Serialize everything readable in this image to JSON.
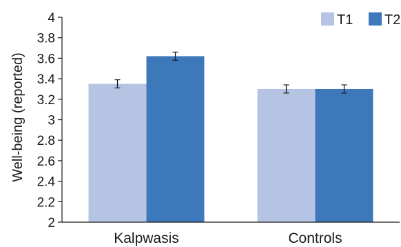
{
  "chart_data": {
    "type": "bar",
    "title": "",
    "xlabel": "",
    "ylabel": "Well-being (reported)",
    "ylim": [
      2,
      4
    ],
    "yticks": [
      "2",
      "2.2",
      "2.4",
      "2.6",
      "2.8",
      "3",
      "3.2",
      "3.4",
      "3.6",
      "3.8",
      "4"
    ],
    "categories": [
      "Kalpwasis",
      "Controls"
    ],
    "series": [
      {
        "name": "T1",
        "color": "#b4c4e2",
        "values": [
          3.35,
          3.3
        ],
        "errors": [
          0.04,
          0.04
        ]
      },
      {
        "name": "T2",
        "color": "#3d78bb",
        "values": [
          3.62,
          3.3
        ],
        "errors": [
          0.04,
          0.04
        ]
      }
    ],
    "grid": false,
    "legend_position": "top-right"
  }
}
